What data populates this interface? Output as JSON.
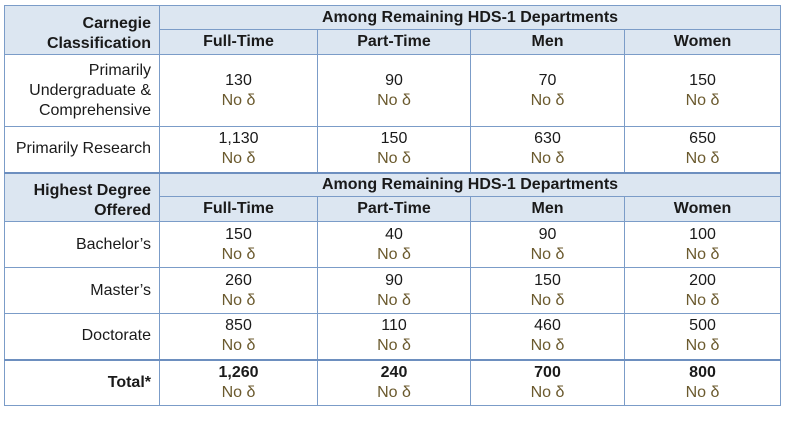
{
  "section1": {
    "stub_header_line1": "Carnegie",
    "stub_header_line2": "Classification",
    "group_header": "Among Remaining HDS-1 Departments",
    "columns": [
      "Full-Time",
      "Part-Time",
      "Men",
      "Women"
    ],
    "rows": [
      {
        "label_lines": [
          "Primarily",
          "Undergraduate &",
          "Comprehensive"
        ],
        "values": [
          "130",
          "90",
          "70",
          "150"
        ],
        "deltas": [
          "No δ",
          "No δ",
          "No δ",
          "No δ"
        ]
      },
      {
        "label_lines": [
          "Primarily Research"
        ],
        "values": [
          "1,130",
          "150",
          "630",
          "650"
        ],
        "deltas": [
          "No δ",
          "No δ",
          "No δ",
          "No δ"
        ]
      }
    ]
  },
  "section2": {
    "stub_header_line1": "Highest Degree",
    "stub_header_line2": "Offered",
    "group_header": "Among Remaining HDS-1 Departments",
    "columns": [
      "Full-Time",
      "Part-Time",
      "Men",
      "Women"
    ],
    "rows": [
      {
        "label_lines": [
          "Bachelor’s"
        ],
        "values": [
          "150",
          "40",
          "90",
          "100"
        ],
        "deltas": [
          "No δ",
          "No δ",
          "No δ",
          "No δ"
        ]
      },
      {
        "label_lines": [
          "Master’s"
        ],
        "values": [
          "260",
          "90",
          "150",
          "200"
        ],
        "deltas": [
          "No δ",
          "No δ",
          "No δ",
          "No δ"
        ]
      },
      {
        "label_lines": [
          "Doctorate"
        ],
        "values": [
          "850",
          "110",
          "460",
          "500"
        ],
        "deltas": [
          "No δ",
          "No δ",
          "No δ",
          "No δ"
        ]
      }
    ]
  },
  "total": {
    "label": "Total*",
    "values": [
      "1,260",
      "240",
      "700",
      "800"
    ],
    "deltas": [
      "No δ",
      "No δ",
      "No δ",
      "No δ"
    ]
  }
}
